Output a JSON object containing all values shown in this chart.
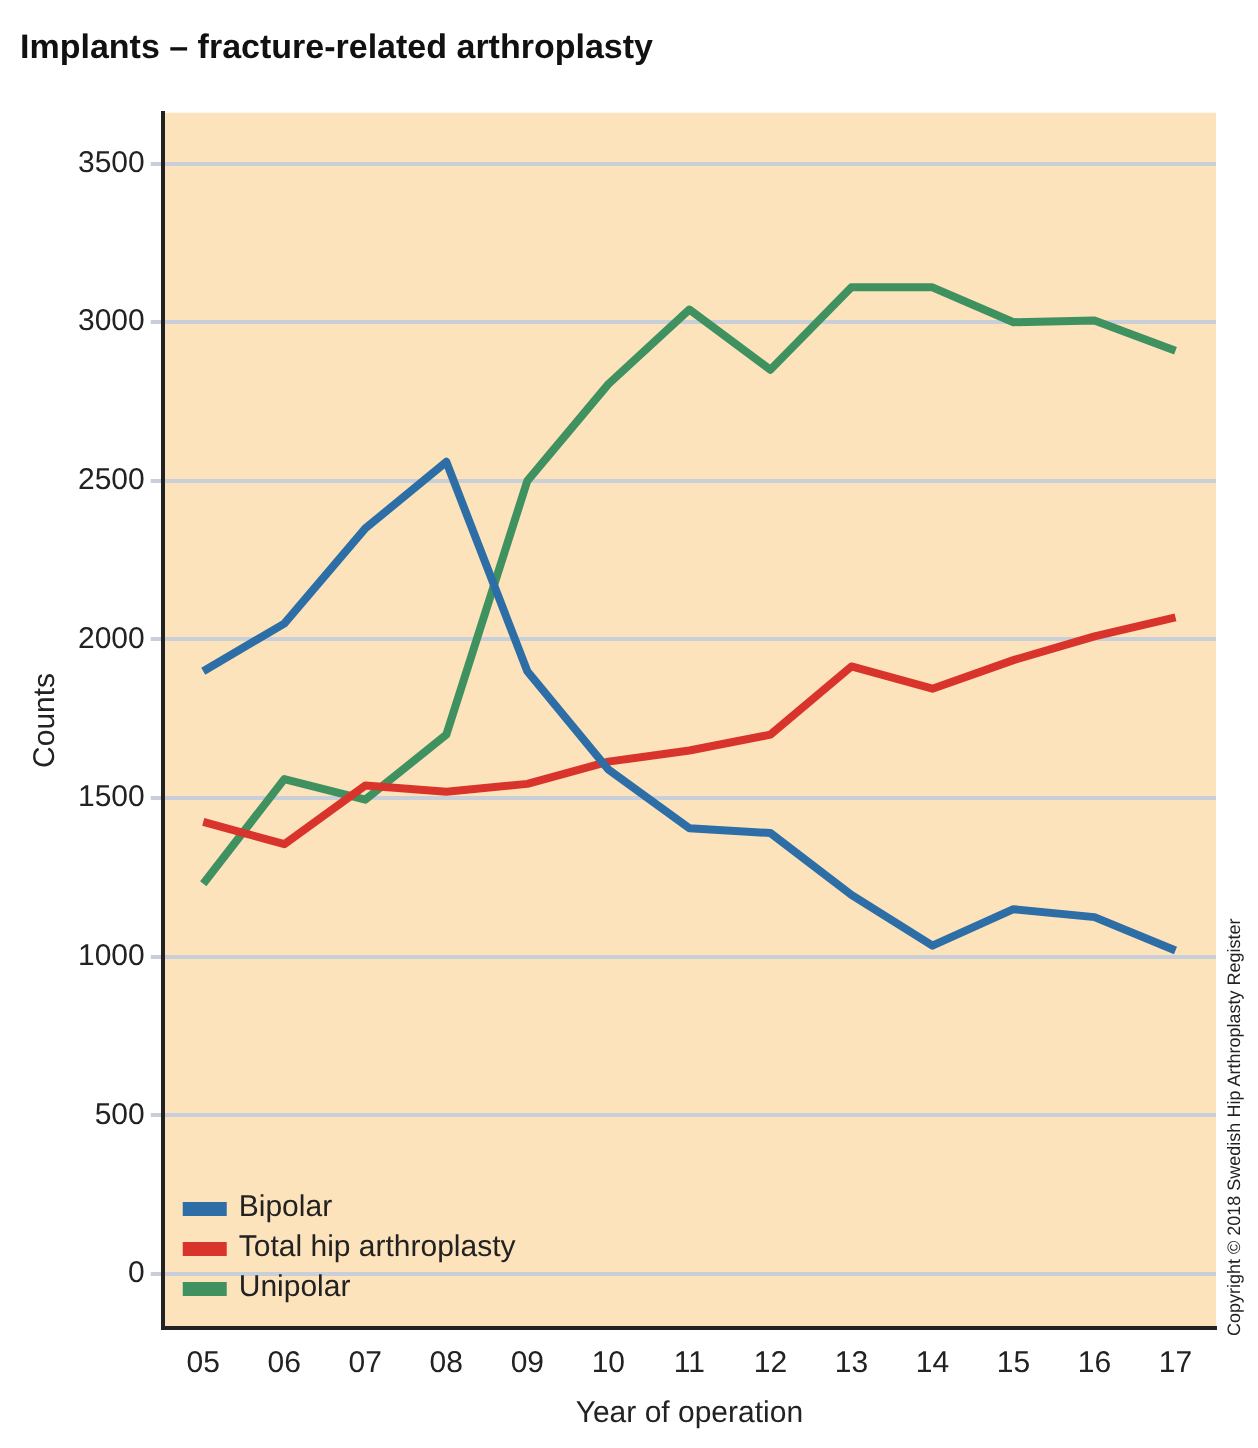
{
  "chart_data": {
    "type": "line",
    "title": "Implants – fracture-related arthroplasty",
    "xlabel": "Year of operation",
    "ylabel": "Counts",
    "categories": [
      "05",
      "06",
      "07",
      "08",
      "09",
      "10",
      "11",
      "12",
      "13",
      "14",
      "15",
      "16",
      "17"
    ],
    "series": [
      {
        "name": "Bipolar",
        "color": "#2e6ea6",
        "values": [
          1900,
          2050,
          2350,
          2560,
          1900,
          1590,
          1405,
          1390,
          1195,
          1035,
          1150,
          1125,
          1020
        ]
      },
      {
        "name": "Total hip arthroplasty",
        "color": "#d9342b",
        "values": [
          1425,
          1355,
          1540,
          1520,
          1545,
          1615,
          1650,
          1700,
          1915,
          1845,
          1935,
          2010,
          2070
        ]
      },
      {
        "name": "Unipolar",
        "color": "#3f9160",
        "values": [
          1230,
          1560,
          1495,
          1700,
          2500,
          2805,
          3040,
          2850,
          3110,
          3110,
          3000,
          3005,
          2910
        ]
      }
    ],
    "ylim": [
      -170,
      3660
    ],
    "yticks": [
      0,
      500,
      1000,
      1500,
      2000,
      2500,
      3000,
      3500
    ],
    "grid": "y",
    "legend": "bottom left",
    "marker": "none",
    "line_style": "solid",
    "annotations": [
      "Copyright © 2018 Swedish Hip Arthroplasty Register"
    ]
  }
}
